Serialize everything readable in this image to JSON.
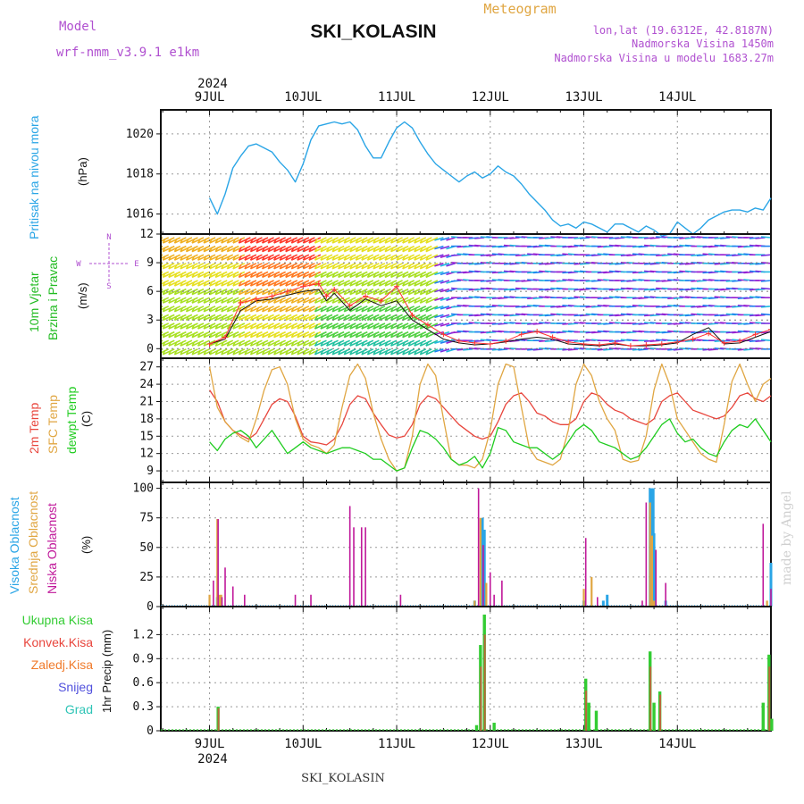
{
  "header": {
    "model_label": "Model",
    "model_name": "wrf-nmm_v3.9.1 e1km",
    "station": "SKI_KOLASIN",
    "meteogram": "Meteogram",
    "lonlat": "lon,lat (19.6312E, 42.8187N)",
    "elevation": "Nadmorska Visina 1450m",
    "model_elevation": "Nadmorska Visina u modelu 1683.27m",
    "footer_station": "SKI_KOLASIN",
    "watermark": "made by Angel"
  },
  "time_axis": {
    "year": "2024",
    "days": [
      "9JUL",
      "10JUL",
      "11JUL",
      "12JUL",
      "13JUL",
      "14JUL"
    ]
  },
  "colors": {
    "pressure": "#2aa5e6",
    "temp2m": "#e8453c",
    "sfc": "#e0a642",
    "dew": "#1fcc1f",
    "high_cloud": "#2aa5e6",
    "mid_cloud": "#e0a642",
    "low_cloud": "#c0189a",
    "total_precip": "#33cc33",
    "conv_precip": "#e8453c",
    "frozen_precip": "#f07a2a",
    "snow": "#5050dd",
    "graupel": "#2ec4b6",
    "wind_label": "#22bb22",
    "compass": "#b050d0"
  },
  "legend": {
    "pressure": [
      "Pritisak na nivou mora",
      "(hPa)"
    ],
    "wind": [
      "10m Vjetar",
      "Brzina i Pravac",
      "(m/s)"
    ],
    "compass": {
      "n": "N",
      "s": "S",
      "e": "E",
      "w": "W"
    },
    "temp": [
      "2m Temp",
      "SFC Temp",
      "dewpt Temp",
      "(C)"
    ],
    "cloud": [
      "Visoka Oblacnost",
      "Srednja Oblacnost",
      "Niska Oblacnost",
      "(%)"
    ],
    "precip_items": [
      "Ukupna Kisa",
      "Konvek.Kisa",
      "Zaledj.Kisa",
      "Snijeg",
      "Grad"
    ],
    "precip_unit": "1hr Precip (mm)"
  },
  "chart_data": [
    {
      "type": "line",
      "panel": "pressure",
      "ylabel": "(hPa)",
      "ylim": [
        1015.0,
        1021.2
      ],
      "yticks": [
        1016,
        1018,
        1020
      ],
      "grid": true,
      "x_hours": [
        0,
        2,
        4,
        6,
        8,
        10,
        12,
        14,
        16,
        18,
        20,
        22,
        24,
        26,
        28,
        30,
        32,
        34,
        36,
        38,
        40,
        42,
        44,
        46,
        48,
        50,
        52,
        54,
        56,
        58,
        60,
        62,
        64,
        66,
        68,
        70,
        72,
        74,
        76,
        78,
        80,
        82,
        84,
        86,
        88,
        90,
        92,
        94,
        96,
        98,
        100,
        102,
        104,
        106,
        108,
        110,
        112,
        114,
        116,
        118,
        120,
        122,
        124,
        126,
        128,
        130,
        132,
        134,
        136,
        138,
        140,
        142,
        144
      ],
      "series": [
        {
          "name": "Pritisak na nivou mora",
          "values": [
            1016.8,
            1016.0,
            1017.0,
            1018.3,
            1018.9,
            1019.4,
            1019.5,
            1019.3,
            1019.1,
            1018.6,
            1018.2,
            1017.6,
            1018.5,
            1019.7,
            1020.4,
            1020.5,
            1020.6,
            1020.5,
            1020.6,
            1020.2,
            1019.4,
            1018.8,
            1018.8,
            1019.6,
            1020.3,
            1020.6,
            1020.3,
            1019.6,
            1019.0,
            1018.5,
            1018.2,
            1017.9,
            1017.6,
            1017.9,
            1018.1,
            1017.8,
            1018.0,
            1018.4,
            1018.1,
            1017.9,
            1017.5,
            1017.0,
            1016.6,
            1016.2,
            1015.7,
            1015.4,
            1015.5,
            1015.3,
            1015.6,
            1015.5,
            1015.3,
            1015.1,
            1015.5,
            1015.5,
            1015.3,
            1015.1,
            1015.4,
            1015.2,
            1014.9,
            1015.0,
            1015.6,
            1015.3,
            1015.0,
            1015.3,
            1015.7,
            1015.9,
            1016.1,
            1016.2,
            1016.2,
            1016.1,
            1016.3,
            1016.2,
            1016.8
          ]
        }
      ]
    },
    {
      "type": "line",
      "panel": "wind",
      "ylabel": "(m/s)",
      "ylim": [
        -1,
        12
      ],
      "yticks": [
        0,
        3,
        6,
        9,
        12
      ],
      "grid": true,
      "x_hours": [
        0,
        4,
        8,
        12,
        16,
        20,
        24,
        28,
        30,
        32,
        36,
        40,
        44,
        48,
        52,
        56,
        60,
        64,
        68,
        72,
        76,
        80,
        84,
        88,
        92,
        96,
        100,
        104,
        108,
        112,
        116,
        120,
        124,
        128,
        132,
        136,
        140,
        144
      ],
      "series": [
        {
          "name": "speed",
          "values": [
            0.5,
            1.2,
            4.8,
            5.2,
            5.5,
            6.0,
            6.5,
            6.8,
            5.5,
            6.2,
            4.5,
            5.5,
            5.0,
            6.5,
            3.5,
            2.5,
            1.5,
            0.8,
            0.6,
            0.5,
            0.8,
            1.5,
            1.8,
            1.2,
            0.7,
            0.5,
            0.4,
            0.6,
            0.3,
            0.4,
            0.5,
            0.7,
            1.0,
            1.6,
            0.6,
            0.8,
            1.5,
            2.0
          ]
        },
        {
          "name": "gust",
          "values": [
            0.5,
            1.0,
            4.0,
            5.0,
            5.2,
            5.6,
            6.0,
            6.2,
            5.0,
            5.8,
            4.0,
            5.2,
            4.5,
            5.0,
            3.0,
            2.0,
            1.0,
            0.6,
            0.4,
            0.5,
            0.7,
            1.0,
            1.2,
            1.0,
            0.5,
            0.4,
            0.3,
            0.5,
            0.3,
            0.3,
            0.4,
            0.6,
            1.5,
            2.2,
            0.5,
            0.6,
            1.2,
            1.8
          ]
        }
      ]
    },
    {
      "type": "line",
      "panel": "temperature",
      "ylabel": "(C)",
      "ylim": [
        7,
        28.5
      ],
      "yticks": [
        9,
        12,
        15,
        18,
        21,
        24,
        27
      ],
      "grid": true,
      "x_hours": [
        0,
        2,
        4,
        6,
        8,
        10,
        12,
        14,
        16,
        18,
        20,
        22,
        24,
        26,
        28,
        30,
        32,
        34,
        36,
        38,
        40,
        42,
        44,
        46,
        48,
        50,
        52,
        54,
        56,
        58,
        60,
        62,
        64,
        66,
        68,
        70,
        72,
        74,
        76,
        78,
        80,
        82,
        84,
        86,
        88,
        90,
        92,
        94,
        96,
        98,
        100,
        102,
        104,
        106,
        108,
        110,
        112,
        114,
        116,
        118,
        120,
        122,
        124,
        126,
        128,
        130,
        132,
        134,
        136,
        138,
        140,
        142,
        144
      ],
      "series": [
        {
          "name": "2m Temp",
          "values": [
            23.0,
            21.0,
            17.5,
            16.0,
            15.2,
            14.5,
            15.5,
            18.0,
            20.5,
            21.5,
            21.0,
            18.5,
            15.0,
            14.0,
            13.8,
            13.5,
            14.5,
            17.0,
            20.5,
            22.0,
            21.5,
            19.0,
            17.0,
            15.2,
            14.7,
            15.0,
            17.0,
            20.5,
            22.0,
            21.5,
            20.0,
            18.5,
            17.0,
            16.0,
            15.0,
            14.5,
            15.0,
            17.5,
            20.5,
            22.0,
            22.5,
            21.0,
            19.0,
            18.5,
            17.5,
            17.0,
            17.0,
            18.0,
            21.0,
            22.5,
            22.0,
            20.5,
            19.5,
            19.0,
            18.0,
            17.5,
            17.0,
            18.0,
            21.0,
            22.0,
            22.5,
            21.0,
            19.5,
            19.0,
            18.5,
            18.0,
            18.5,
            20.0,
            22.0,
            22.5,
            21.5,
            21.0,
            22.0
          ]
        },
        {
          "name": "SFC Temp",
          "values": [
            27.0,
            20.0,
            17.5,
            16.0,
            14.8,
            14.0,
            18.0,
            23.0,
            26.5,
            27.0,
            24.0,
            18.0,
            14.5,
            13.5,
            13.0,
            12.0,
            13.5,
            20.0,
            25.5,
            27.5,
            25.0,
            19.0,
            14.5,
            11.0,
            9.0,
            9.5,
            15.0,
            24.0,
            27.5,
            25.5,
            18.0,
            11.0,
            10.0,
            10.0,
            9.5,
            11.0,
            16.0,
            24.0,
            27.5,
            27.0,
            20.0,
            13.0,
            11.0,
            10.5,
            10.0,
            11.0,
            16.0,
            24.0,
            27.5,
            25.5,
            21.0,
            18.0,
            16.0,
            11.0,
            10.5,
            10.8,
            15.0,
            23.0,
            27.5,
            24.0,
            18.0,
            16.0,
            14.0,
            12.0,
            11.0,
            10.5,
            17.0,
            24.5,
            27.5,
            24.0,
            21.0,
            24.0,
            25.0
          ]
        },
        {
          "name": "dewpt Temp",
          "values": [
            14.0,
            12.5,
            14.5,
            15.5,
            16.0,
            15.0,
            13.0,
            14.5,
            16.0,
            14.0,
            12.0,
            13.0,
            14.0,
            13.0,
            12.5,
            12.0,
            12.5,
            13.0,
            13.0,
            12.5,
            12.0,
            11.0,
            11.0,
            10.0,
            9.0,
            9.5,
            13.0,
            16.0,
            15.5,
            14.5,
            13.0,
            11.0,
            10.0,
            10.5,
            11.5,
            9.5,
            12.0,
            16.5,
            16.0,
            14.0,
            13.5,
            13.0,
            13.0,
            12.0,
            11.0,
            12.0,
            14.0,
            16.0,
            17.0,
            16.0,
            14.0,
            13.5,
            13.0,
            12.0,
            11.0,
            11.5,
            13.0,
            15.0,
            17.0,
            18.0,
            15.5,
            14.0,
            14.5,
            13.0,
            12.0,
            11.5,
            14.0,
            16.0,
            17.0,
            16.5,
            18.0,
            16.0,
            14.0
          ]
        }
      ]
    },
    {
      "type": "bar",
      "panel": "cloud",
      "ylabel": "(%)",
      "ylim": [
        0,
        105
      ],
      "yticks": [
        0,
        25,
        50,
        75,
        100
      ],
      "grid": true,
      "series": [
        {
          "name": "Visoka Oblacnost",
          "points": [
            [
              2,
              8
            ],
            [
              68,
              5
            ],
            [
              70,
              75
            ],
            [
              70.5,
              65
            ],
            [
              96,
              5
            ],
            [
              101,
              5
            ],
            [
              102,
              10
            ],
            [
              113,
              100
            ],
            [
              113.4,
              100
            ],
            [
              113.8,
              100
            ],
            [
              114,
              62
            ],
            [
              117,
              5
            ],
            [
              144,
              37
            ]
          ]
        },
        {
          "name": "Srednja Oblacnost",
          "points": [
            [
              0,
              10
            ],
            [
              2,
              74
            ],
            [
              2.5,
              10
            ],
            [
              3,
              10
            ],
            [
              68,
              5
            ],
            [
              69.5,
              75
            ],
            [
              71,
              20
            ],
            [
              96,
              15
            ],
            [
              98,
              25
            ],
            [
              113,
              88
            ],
            [
              113.5,
              60
            ],
            [
              114,
              5
            ],
            [
              143,
              5
            ]
          ]
        },
        {
          "name": "Niska Oblacnost",
          "points": [
            [
              1,
              22
            ],
            [
              2.2,
              74
            ],
            [
              3.2,
              8
            ],
            [
              4,
              33
            ],
            [
              6,
              17
            ],
            [
              9,
              10
            ],
            [
              22,
              10
            ],
            [
              26,
              10
            ],
            [
              36,
              85
            ],
            [
              37,
              67
            ],
            [
              39,
              67
            ],
            [
              40,
              67
            ],
            [
              49,
              10
            ],
            [
              69,
              100
            ],
            [
              70.2,
              52
            ],
            [
              72,
              29
            ],
            [
              73,
              10
            ],
            [
              75,
              22
            ],
            [
              96.5,
              58
            ],
            [
              99.5,
              8
            ],
            [
              111,
              5
            ],
            [
              112,
              88
            ],
            [
              114.5,
              48
            ],
            [
              117,
              20
            ],
            [
              142,
              70
            ],
            [
              144,
              15
            ]
          ]
        }
      ]
    },
    {
      "type": "bar",
      "panel": "precip",
      "ylabel": "1hr Precip (mm)",
      "ylim": [
        0,
        1.55
      ],
      "yticks": [
        0,
        0.3,
        0.6,
        0.9,
        1.2
      ],
      "grid": true,
      "series": [
        {
          "name": "Ukupna Kisa",
          "points": [
            [
              2.2,
              0.3
            ],
            [
              68.5,
              0.07
            ],
            [
              69.5,
              1.07
            ],
            [
              70.5,
              1.45
            ],
            [
              73,
              0.1
            ],
            [
              96.5,
              0.65
            ],
            [
              97.3,
              0.35
            ],
            [
              99.2,
              0.25
            ],
            [
              113,
              0.99
            ],
            [
              114,
              0.35
            ],
            [
              115.5,
              0.49
            ],
            [
              142,
              0.35
            ],
            [
              143.5,
              0.95
            ],
            [
              144.2,
              0.15
            ]
          ]
        },
        {
          "name": "Konvek.Kisa",
          "points": [
            [
              2.3,
              0.28
            ],
            [
              69.6,
              0.8
            ],
            [
              70.6,
              1.2
            ],
            [
              96.6,
              0.5
            ],
            [
              113.1,
              0.8
            ],
            [
              115.6,
              0.45
            ],
            [
              143.6,
              0.8
            ]
          ]
        }
      ]
    }
  ]
}
